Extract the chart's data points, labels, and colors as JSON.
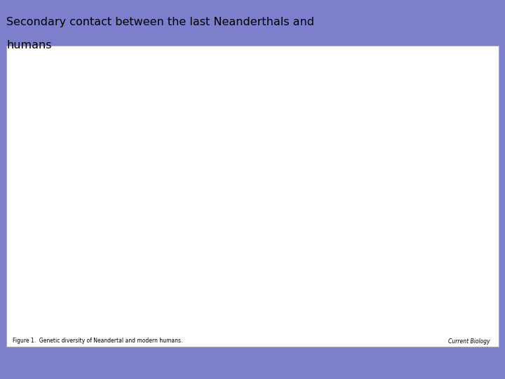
{
  "background_color": "#7b7fcc",
  "panel_bg": "#ffffff",
  "title_line1": "Secondary contact between the last Neanderthals and",
  "title_line2": "humans",
  "caption": "Figure 1.  Genetic diversity of Neandertal and modern humans.",
  "source": "Current Biology",
  "blue_ocean": "#a8c8e8",
  "arrow_blue": "#5b9bd5",
  "red_dark": "#8b1a1a",
  "blue_dot": "#5577aa",
  "map_edge": "#777777",
  "border_gray": "#aaaaaa"
}
